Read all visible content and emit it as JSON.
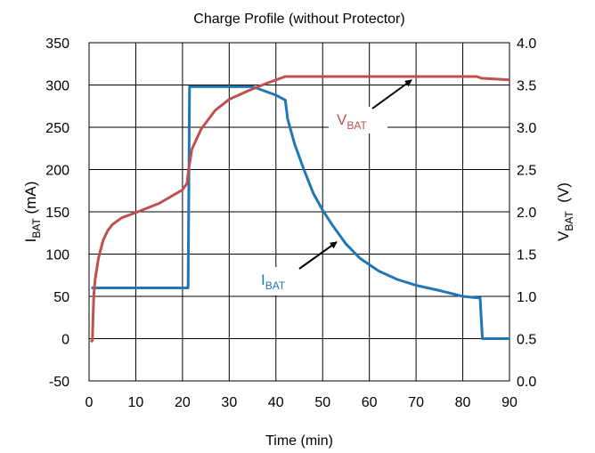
{
  "chart_data": {
    "type": "line",
    "title": "Charge Profile (without Protector)",
    "xlabel": "Time (min)",
    "ylabel_left": {
      "main": "I",
      "sub": "BAT",
      "unit": " (mA)"
    },
    "ylabel_right": {
      "main": "V",
      "sub": "BAT",
      "unit": "  (V)"
    },
    "xlim": [
      0,
      90
    ],
    "ylim_left": [
      -50,
      350
    ],
    "ylim_right": [
      0.0,
      4.0
    ],
    "x_ticks": [
      "0",
      "10",
      "20",
      "30",
      "40",
      "50",
      "60",
      "70",
      "80",
      "90"
    ],
    "y_ticks_left": [
      "-50",
      "0",
      "50",
      "100",
      "150",
      "200",
      "250",
      "300",
      "350"
    ],
    "y_ticks_right": [
      "0.0",
      "0.5",
      "1.0",
      "1.5",
      "2.0",
      "2.5",
      "3.0",
      "3.5",
      "4.0"
    ],
    "grid": true,
    "series": [
      {
        "name": "IBAT",
        "axis": "left",
        "color": "#1f77b4",
        "x": [
          0.5,
          1.2,
          10,
          21,
          21.2,
          21.5,
          30,
          35,
          40,
          42,
          42.5,
          44,
          46,
          48,
          50,
          52,
          55,
          58,
          62,
          66,
          70,
          75,
          80,
          83.5,
          83.7,
          84.2,
          90
        ],
        "y": [
          60,
          60,
          60,
          60,
          60,
          298,
          298,
          298,
          288,
          282,
          260,
          230,
          200,
          172,
          152,
          135,
          112,
          95,
          80,
          70,
          63,
          57,
          50,
          48,
          48,
          0,
          0
        ]
      },
      {
        "name": "VBAT",
        "axis": "right",
        "color": "#c0504d",
        "x": [
          0.4,
          0.7,
          1.0,
          1.3,
          2,
          3,
          4,
          5,
          7,
          10,
          15,
          20,
          21,
          21.3,
          21.6,
          22,
          24,
          27,
          30,
          34,
          38,
          42,
          50,
          60,
          70,
          80,
          83,
          84,
          90
        ],
        "y": [
          0.46,
          0.48,
          1.0,
          1.2,
          1.45,
          1.66,
          1.78,
          1.85,
          1.93,
          1.99,
          2.1,
          2.26,
          2.34,
          2.5,
          2.6,
          2.74,
          2.98,
          3.2,
          3.33,
          3.43,
          3.52,
          3.6,
          3.6,
          3.6,
          3.6,
          3.6,
          3.6,
          3.58,
          3.56
        ]
      }
    ],
    "annotations": [
      {
        "main": "V",
        "sub": "BAT",
        "color": "#c0504d",
        "series": "VBAT"
      },
      {
        "main": "I",
        "sub": "BAT",
        "color": "#1f77b4",
        "series": "IBAT"
      }
    ]
  }
}
